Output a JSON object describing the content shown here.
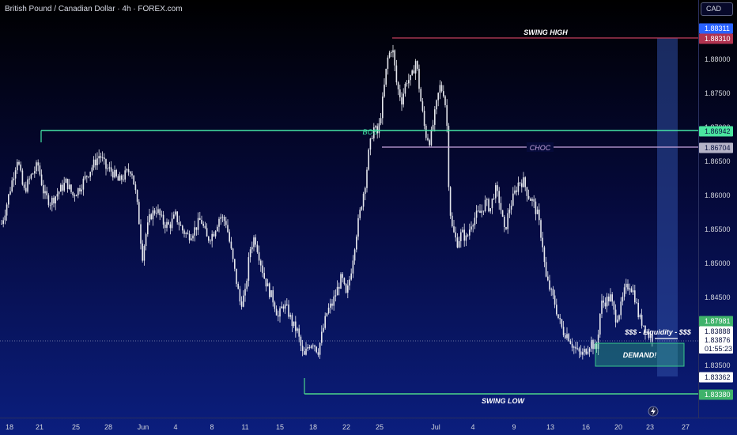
{
  "title": "British Pound / Canadian Dollar · 4h · FOREX.com",
  "currency_label": "CAD",
  "colors": {
    "candle": "#e6e8ee",
    "swing_high": "#c2405e",
    "bos": "#46e6a6",
    "choc": "#c9a6e0",
    "swing_low": "#4cd68a",
    "demand": "#37c98a",
    "liquidity_bar": "#2f4fa6",
    "current_badge": "#ffffff",
    "background_top": "#000000",
    "background_bottom": "#0b1e7e"
  },
  "chart_data": {
    "type": "candlestick",
    "ylim": [
      1.8318,
      1.8895
    ],
    "price_ticks": [
      "1.88000",
      "1.87500",
      "1.87000",
      "1.86500",
      "1.86000",
      "1.85500",
      "1.85000",
      "1.84500",
      "1.84000",
      "1.83500",
      "1.83000"
    ],
    "time_ticks": [
      "18",
      "21",
      "25",
      "28",
      "Jun",
      "4",
      "8",
      "11",
      "15",
      "18",
      "22",
      "25",
      "Jul",
      "4",
      "9",
      "13",
      "16",
      "20",
      "23",
      "27"
    ],
    "close_path": [
      [
        0,
        1.855
      ],
      [
        6,
        1.8575
      ],
      [
        14,
        1.8615
      ],
      [
        22,
        1.8655
      ],
      [
        30,
        1.8605
      ],
      [
        40,
        1.863
      ],
      [
        48,
        1.8645
      ],
      [
        56,
        1.86
      ],
      [
        64,
        1.859
      ],
      [
        74,
        1.8605
      ],
      [
        84,
        1.862
      ],
      [
        92,
        1.86
      ],
      [
        100,
        1.861
      ],
      [
        110,
        1.863
      ],
      [
        118,
        1.8645
      ],
      [
        126,
        1.866
      ],
      [
        134,
        1.864
      ],
      [
        142,
        1.8635
      ],
      [
        150,
        1.862
      ],
      [
        158,
        1.863
      ],
      [
        166,
        1.864
      ],
      [
        172,
        1.86
      ],
      [
        176,
        1.856
      ],
      [
        180,
        1.851
      ],
      [
        184,
        1.854
      ],
      [
        190,
        1.857
      ],
      [
        198,
        1.858
      ],
      [
        206,
        1.856
      ],
      [
        214,
        1.8555
      ],
      [
        222,
        1.857
      ],
      [
        230,
        1.855
      ],
      [
        238,
        1.854
      ],
      [
        246,
        1.855
      ],
      [
        254,
        1.8565
      ],
      [
        262,
        1.8535
      ],
      [
        270,
        1.8545
      ],
      [
        278,
        1.857
      ],
      [
        286,
        1.856
      ],
      [
        292,
        1.852
      ],
      [
        298,
        1.848
      ],
      [
        304,
        1.844
      ],
      [
        310,
        1.8455
      ],
      [
        316,
        1.852
      ],
      [
        322,
        1.854
      ],
      [
        328,
        1.851
      ],
      [
        334,
        1.848
      ],
      [
        340,
        1.846
      ],
      [
        346,
        1.8445
      ],
      [
        352,
        1.842
      ],
      [
        358,
        1.844
      ],
      [
        364,
        1.843
      ],
      [
        370,
        1.841
      ],
      [
        376,
        1.84
      ],
      [
        380,
        1.838
      ],
      [
        384,
        1.836
      ],
      [
        390,
        1.838
      ],
      [
        396,
        1.8385
      ],
      [
        402,
        1.837
      ],
      [
        408,
        1.84
      ],
      [
        414,
        1.843
      ],
      [
        420,
        1.844
      ],
      [
        426,
        1.846
      ],
      [
        432,
        1.848
      ],
      [
        438,
        1.845
      ],
      [
        444,
        1.849
      ],
      [
        450,
        1.854
      ],
      [
        456,
        1.858
      ],
      [
        462,
        1.862
      ],
      [
        466,
        1.866
      ],
      [
        472,
        1.87
      ],
      [
        478,
        1.869
      ],
      [
        484,
        1.874
      ],
      [
        490,
        1.88
      ],
      [
        496,
        1.882
      ],
      [
        502,
        1.876
      ],
      [
        508,
        1.874
      ],
      [
        514,
        1.877
      ],
      [
        520,
        1.877
      ],
      [
        526,
        1.88
      ],
      [
        532,
        1.874
      ],
      [
        538,
        1.869
      ],
      [
        544,
        1.868
      ],
      [
        550,
        1.872
      ],
      [
        556,
        1.876
      ],
      [
        562,
        1.875
      ],
      [
        566,
        1.869
      ],
      [
        568,
        1.859
      ],
      [
        572,
        1.855
      ],
      [
        578,
        1.853
      ],
      [
        584,
        1.8545
      ],
      [
        590,
        1.8535
      ],
      [
        596,
        1.856
      ],
      [
        602,
        1.857
      ],
      [
        608,
        1.8575
      ],
      [
        614,
        1.859
      ],
      [
        620,
        1.858
      ],
      [
        626,
        1.861
      ],
      [
        632,
        1.859
      ],
      [
        638,
        1.8545
      ],
      [
        644,
        1.858
      ],
      [
        650,
        1.86
      ],
      [
        656,
        1.862
      ],
      [
        662,
        1.862
      ],
      [
        668,
        1.86
      ],
      [
        674,
        1.859
      ],
      [
        680,
        1.857
      ],
      [
        686,
        1.853
      ],
      [
        690,
        1.848
      ],
      [
        696,
        1.846
      ],
      [
        702,
        1.844
      ],
      [
        706,
        1.842
      ],
      [
        712,
        1.84
      ],
      [
        718,
        1.8395
      ],
      [
        724,
        1.838
      ],
      [
        730,
        1.837
      ],
      [
        736,
        1.8365
      ],
      [
        742,
        1.8375
      ],
      [
        748,
        1.8385
      ],
      [
        754,
        1.837
      ],
      [
        760,
        1.844
      ],
      [
        766,
        1.8445
      ],
      [
        772,
        1.845
      ],
      [
        778,
        1.842
      ],
      [
        784,
        1.843
      ],
      [
        790,
        1.846
      ],
      [
        796,
        1.847
      ],
      [
        802,
        1.8455
      ],
      [
        808,
        1.842
      ],
      [
        814,
        1.841
      ],
      [
        820,
        1.8395
      ],
      [
        826,
        1.839
      ]
    ],
    "levels": [
      {
        "name": "SWING HIGH",
        "price": 1.8831,
        "badge": "1.88310"
      },
      {
        "name": "BOS",
        "price": 1.86942,
        "badge": "1.86942"
      },
      {
        "name": "CHOC",
        "price": 1.86704,
        "badge": "1.86704"
      },
      {
        "name": "SWING LOW",
        "price": 1.8338,
        "badge": "1.83380"
      }
    ],
    "demand_zone": {
      "label": "DEMAND!",
      "top": 1.8385,
      "bottom": 1.8351
    },
    "liquidity_label": "$$$ - Liquidity - $$$",
    "current_price": 1.83876,
    "badges": {
      "top": "1.88311",
      "green": "1.87981",
      "white": "1.83888",
      "current": "1.83876",
      "countdown": "01:55:23",
      "bottom": "1.83362"
    }
  }
}
